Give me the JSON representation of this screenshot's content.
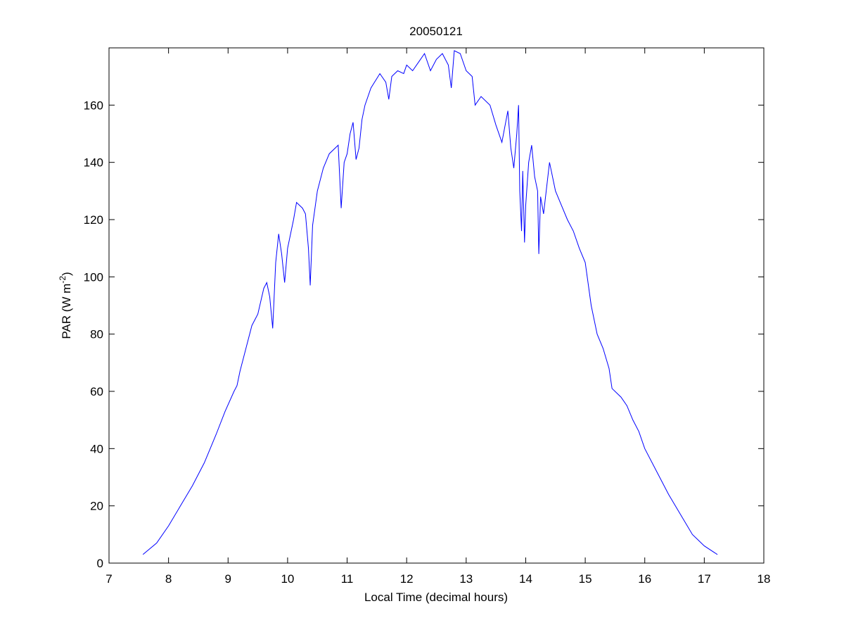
{
  "chart_data": {
    "type": "line",
    "title": "20050121",
    "xlabel": "Local Time (decimal hours)",
    "ylabel": {
      "text": "PAR (W m",
      "superscript": "-2",
      "suffix": ")"
    },
    "xlim": [
      7,
      18
    ],
    "xticks": [
      7,
      8,
      9,
      10,
      11,
      12,
      13,
      14,
      15,
      16,
      17,
      18
    ],
    "ylim": [
      0,
      180
    ],
    "yticks": [
      0,
      20,
      40,
      60,
      80,
      100,
      120,
      140,
      160
    ],
    "grid": false,
    "series": [
      {
        "color": "#0000ff",
        "x": [
          7.57,
          7.8,
          8.0,
          8.2,
          8.4,
          8.6,
          8.8,
          8.95,
          9.1,
          9.15,
          9.2,
          9.3,
          9.4,
          9.5,
          9.6,
          9.65,
          9.7,
          9.75,
          9.8,
          9.85,
          9.9,
          9.95,
          10.0,
          10.1,
          10.15,
          10.25,
          10.3,
          10.35,
          10.38,
          10.42,
          10.5,
          10.6,
          10.7,
          10.85,
          10.9,
          10.95,
          11.0,
          11.05,
          11.1,
          11.15,
          11.2,
          11.25,
          11.3,
          11.4,
          11.55,
          11.65,
          11.7,
          11.75,
          11.85,
          11.95,
          12.0,
          12.1,
          12.2,
          12.3,
          12.4,
          12.5,
          12.6,
          12.7,
          12.75,
          12.8,
          12.9,
          13.0,
          13.1,
          13.15,
          13.25,
          13.4,
          13.5,
          13.6,
          13.7,
          13.75,
          13.8,
          13.85,
          13.88,
          13.9,
          13.93,
          13.95,
          13.98,
          14.0,
          14.05,
          14.1,
          14.15,
          14.2,
          14.22,
          14.25,
          14.3,
          14.4,
          14.5,
          14.6,
          14.7,
          14.8,
          14.9,
          15.0,
          15.1,
          15.2,
          15.3,
          15.4,
          15.45,
          15.6,
          15.7,
          15.8,
          15.9,
          16.0,
          16.2,
          16.4,
          16.6,
          16.8,
          17.0,
          17.22
        ],
        "values": [
          3,
          7,
          13,
          20,
          27,
          35,
          45,
          53,
          60,
          62,
          67,
          75,
          83,
          87,
          96,
          98,
          93,
          82,
          105,
          115,
          108,
          98,
          110,
          120,
          126,
          124,
          122,
          110,
          97,
          118,
          130,
          138,
          143,
          146,
          124,
          140,
          143,
          150,
          154,
          141,
          145,
          155,
          160,
          166,
          171,
          168,
          162,
          170,
          172,
          171,
          174,
          172,
          175,
          178,
          172,
          176,
          178,
          174,
          166,
          179,
          178,
          172,
          170,
          160,
          163,
          160,
          153,
          147,
          158,
          145,
          138,
          150,
          160,
          130,
          116,
          137,
          112,
          125,
          140,
          146,
          135,
          130,
          108,
          128,
          122,
          140,
          130,
          125,
          120,
          116,
          110,
          105,
          90,
          80,
          75,
          68,
          61,
          58,
          55,
          50,
          46,
          40,
          32,
          24,
          17,
          10,
          6,
          3
        ]
      }
    ]
  }
}
